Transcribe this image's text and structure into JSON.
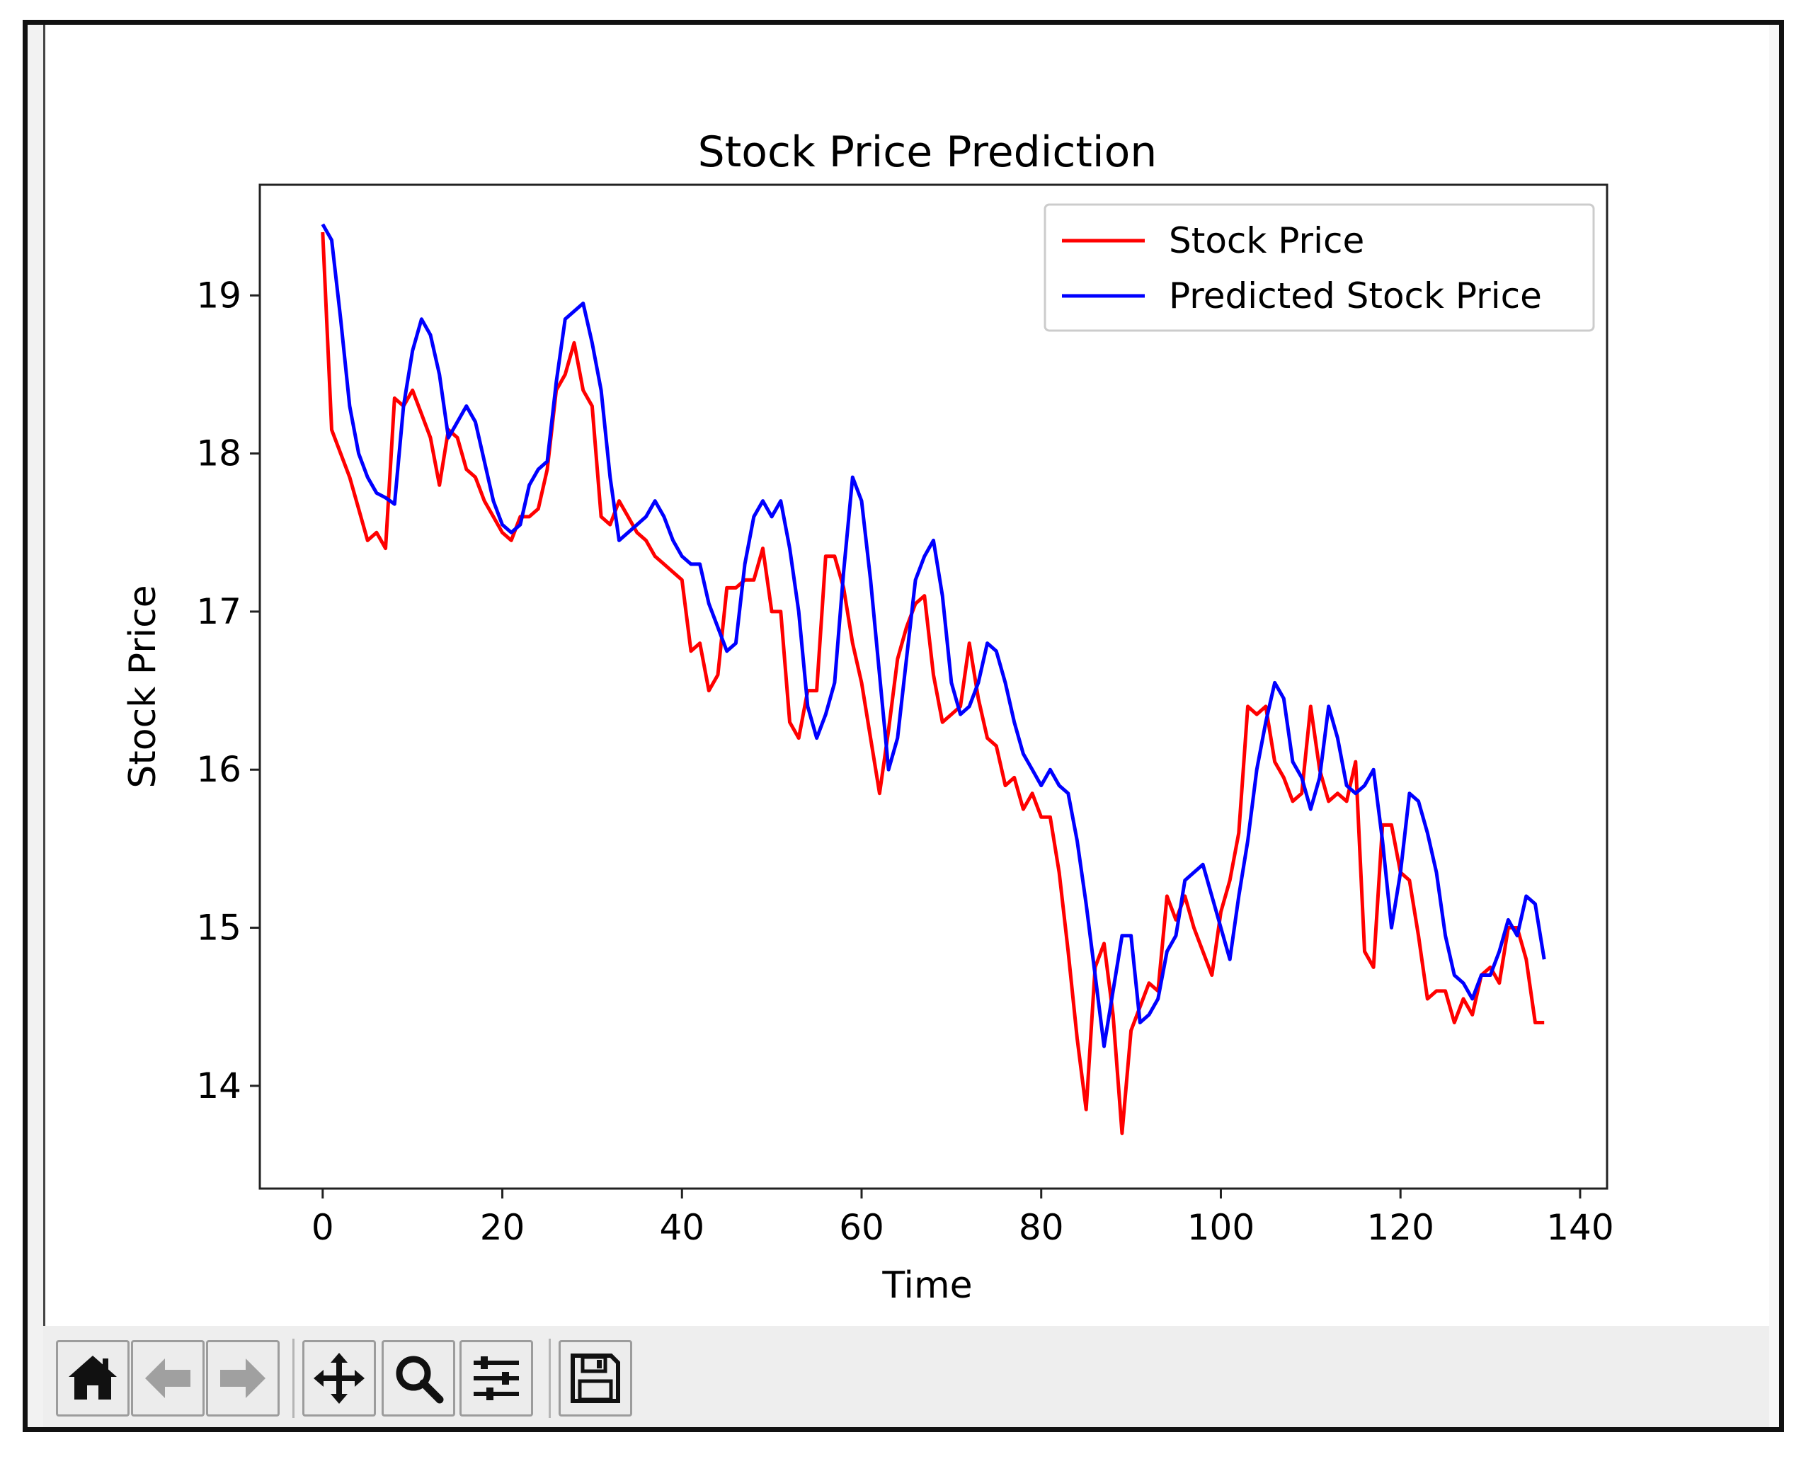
{
  "chart_data": {
    "type": "line",
    "title": "Stock Price Prediction",
    "xlabel": "Time",
    "ylabel": "Stock Price",
    "xlim": [
      -7,
      143
    ],
    "ylim": [
      13.35,
      19.7
    ],
    "xticks": [
      0,
      20,
      40,
      60,
      80,
      100,
      120,
      140
    ],
    "yticks": [
      14,
      15,
      16,
      17,
      18,
      19
    ],
    "grid": false,
    "legend_position": "top-right",
    "series": [
      {
        "name": "Stock Price",
        "color": "#ff0000",
        "values": [
          19.4,
          18.15,
          18.0,
          17.85,
          17.65,
          17.45,
          17.5,
          17.4,
          18.35,
          18.3,
          18.4,
          18.25,
          18.1,
          17.8,
          18.15,
          18.1,
          17.9,
          17.85,
          17.7,
          17.6,
          17.5,
          17.45,
          17.6,
          17.6,
          17.65,
          17.9,
          18.4,
          18.5,
          18.7,
          18.4,
          18.3,
          17.6,
          17.55,
          17.7,
          17.6,
          17.5,
          17.45,
          17.35,
          17.3,
          17.25,
          17.2,
          16.75,
          16.8,
          16.5,
          16.6,
          17.15,
          17.15,
          17.2,
          17.2,
          17.4,
          17.0,
          17.0,
          16.3,
          16.2,
          16.5,
          16.5,
          17.35,
          17.35,
          17.15,
          16.8,
          16.55,
          16.2,
          15.85,
          16.25,
          16.7,
          16.9,
          17.05,
          17.1,
          16.6,
          16.3,
          16.35,
          16.4,
          16.8,
          16.45,
          16.2,
          16.15,
          15.9,
          15.95,
          15.75,
          15.85,
          15.7,
          15.7,
          15.35,
          14.85,
          14.3,
          13.85,
          14.75,
          14.9,
          14.45,
          13.7,
          14.35,
          14.5,
          14.65,
          14.6,
          15.2,
          15.05,
          15.2,
          15.0,
          14.85,
          14.7,
          15.1,
          15.3,
          15.6,
          16.4,
          16.35,
          16.4,
          16.05,
          15.95,
          15.8,
          15.85,
          16.4,
          16.0,
          15.8,
          15.85,
          15.8,
          16.05,
          14.85,
          14.75,
          15.65,
          15.65,
          15.35,
          15.3,
          14.95,
          14.55,
          14.6,
          14.6,
          14.4,
          14.55,
          14.45,
          14.7,
          14.75,
          14.65,
          15.0,
          15.0,
          14.8,
          14.4,
          14.4
        ]
      },
      {
        "name": "Predicted Stock Price",
        "color": "#0000ff",
        "values": [
          19.45,
          19.35,
          18.85,
          18.3,
          18.0,
          17.85,
          17.75,
          17.72,
          17.68,
          18.3,
          18.65,
          18.85,
          18.75,
          18.5,
          18.1,
          18.2,
          18.3,
          18.2,
          17.95,
          17.7,
          17.55,
          17.5,
          17.55,
          17.8,
          17.9,
          17.95,
          18.45,
          18.85,
          18.9,
          18.95,
          18.7,
          18.4,
          17.85,
          17.45,
          17.5,
          17.55,
          17.6,
          17.7,
          17.6,
          17.45,
          17.35,
          17.3,
          17.3,
          17.05,
          16.9,
          16.75,
          16.8,
          17.3,
          17.6,
          17.7,
          17.6,
          17.7,
          17.4,
          17.0,
          16.4,
          16.2,
          16.35,
          16.55,
          17.25,
          17.85,
          17.7,
          17.2,
          16.6,
          16.0,
          16.2,
          16.7,
          17.2,
          17.35,
          17.45,
          17.1,
          16.55,
          16.35,
          16.4,
          16.55,
          16.8,
          16.75,
          16.55,
          16.3,
          16.1,
          16.0,
          15.9,
          16.0,
          15.9,
          15.85,
          15.55,
          15.15,
          14.7,
          14.25,
          14.6,
          14.95,
          14.95,
          14.4,
          14.45,
          14.55,
          14.85,
          14.95,
          15.3,
          15.35,
          15.4,
          15.2,
          15.0,
          14.8,
          15.2,
          15.55,
          16.0,
          16.3,
          16.55,
          16.45,
          16.05,
          15.95,
          15.75,
          15.95,
          16.4,
          16.2,
          15.9,
          15.85,
          15.9,
          16.0,
          15.55,
          15.0,
          15.35,
          15.85,
          15.8,
          15.6,
          15.35,
          14.95,
          14.7,
          14.65,
          14.55,
          14.7,
          14.7,
          14.85,
          15.05,
          14.95,
          15.2,
          15.15,
          14.8
        ]
      }
    ]
  },
  "toolbar": {
    "buttons": [
      {
        "name": "home-icon",
        "action": "home"
      },
      {
        "name": "back-arrow-icon",
        "action": "back"
      },
      {
        "name": "forward-arrow-icon",
        "action": "forward"
      },
      {
        "name": "pan-move-icon",
        "action": "pan"
      },
      {
        "name": "zoom-magnifier-icon",
        "action": "zoom"
      },
      {
        "name": "configure-sliders-icon",
        "action": "configure"
      },
      {
        "name": "save-floppy-icon",
        "action": "save"
      }
    ]
  }
}
